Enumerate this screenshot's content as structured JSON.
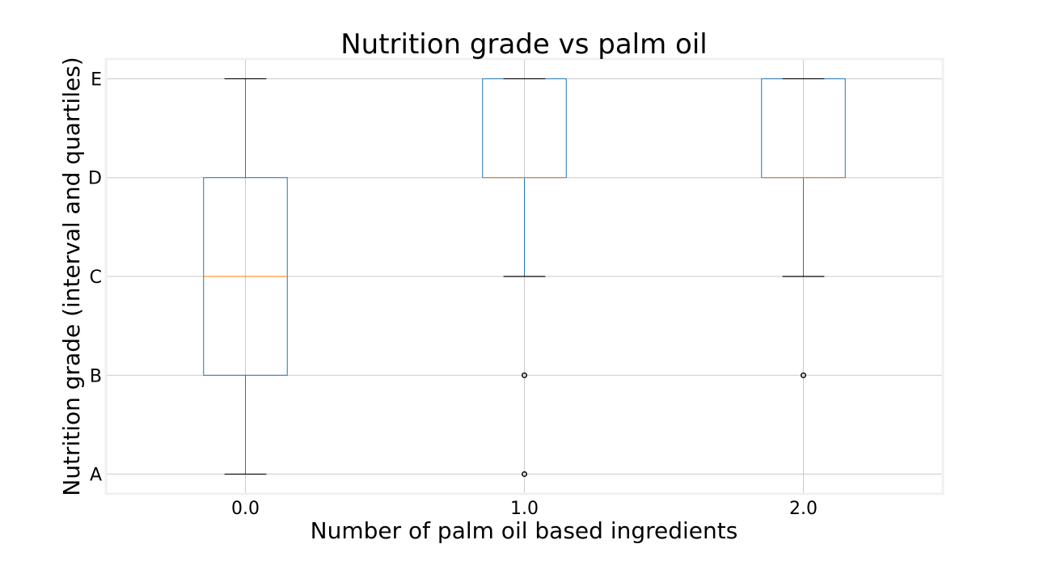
{
  "chart_data": {
    "type": "box",
    "title": "Nutrition grade vs palm oil",
    "xlabel": "Number of palm oil based ingredients",
    "ylabel": "Nutrition grade (interval and quartiles)",
    "categories": [
      "0.0",
      "1.0",
      "2.0"
    ],
    "y_tick_labels": [
      "A",
      "B",
      "C",
      "D",
      "E"
    ],
    "y_tick_values": [
      1,
      2,
      3,
      4,
      5
    ],
    "ylim": [
      0.8,
      5.2
    ],
    "grid": true,
    "boxes": [
      {
        "category": "0.0",
        "whisker_low": 1,
        "q1": 2,
        "median": 3,
        "q3": 4,
        "whisker_high": 5,
        "outliers": []
      },
      {
        "category": "1.0",
        "whisker_low": 3,
        "q1": 4,
        "median": 4,
        "q3": 5,
        "whisker_high": 5,
        "outliers": [
          2,
          1
        ]
      },
      {
        "category": "2.0",
        "whisker_low": 3,
        "q1": 4,
        "median": 4,
        "q3": 5,
        "whisker_high": 5,
        "outliers": [
          2
        ]
      }
    ],
    "colors": {
      "box": "#1f77b4",
      "median": "#ff7f0e",
      "caps": "#000000",
      "grid": "#cbcbcb",
      "frame": "#f0f0f0",
      "outlier": "#000000"
    }
  }
}
